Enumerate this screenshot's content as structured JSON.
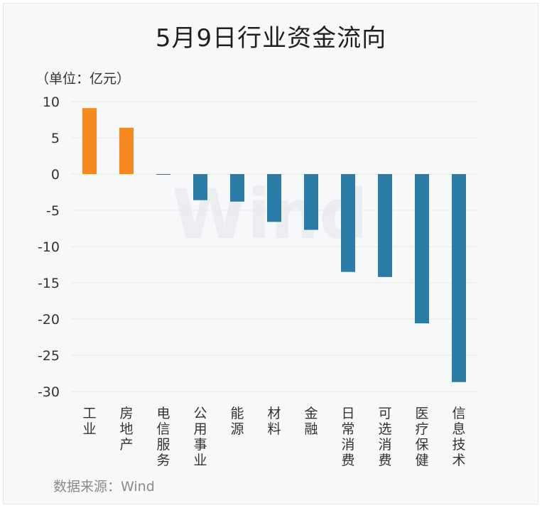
{
  "chart_data": {
    "type": "bar",
    "title": "5月9日行业资金流向",
    "unit_label": "（单位：亿元）",
    "source": "数据来源：Wind",
    "watermark": "Wind",
    "categories": [
      "工业",
      "房地产",
      "电信服务",
      "公用事业",
      "能源",
      "材料",
      "金融",
      "日常消费",
      "可选消费",
      "医疗保健",
      "信息技术"
    ],
    "values": [
      9.1,
      6.4,
      -0.1,
      -3.6,
      -3.8,
      -6.6,
      -7.7,
      -13.5,
      -14.2,
      -20.6,
      -28.7
    ],
    "ylim": [
      -30,
      10
    ],
    "yticks": [
      10,
      5,
      0,
      -5,
      -10,
      -15,
      -20,
      -25,
      -30
    ],
    "grid": true,
    "colors": {
      "positive": "#f5891f",
      "negative": "#2a7ca6",
      "grid": "#e6e8eb"
    }
  }
}
